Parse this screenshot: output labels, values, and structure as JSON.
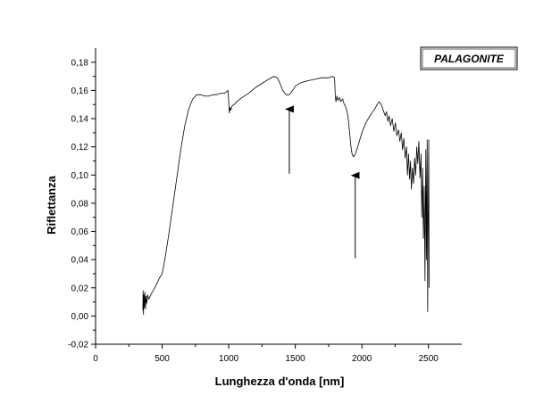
{
  "chart_data": {
    "type": "line",
    "xlabel": "Lunghezza d'onda [nm]",
    "ylabel": "Riflettanza",
    "xlim": [
      0,
      2750
    ],
    "ylim": [
      -0.02,
      0.19
    ],
    "x_ticks": [
      0,
      500,
      1000,
      1500,
      2000,
      2500
    ],
    "x_tick_labels": [
      "0",
      "500",
      "1000",
      "1500",
      "2000",
      "2500"
    ],
    "y_ticks": [
      -0.02,
      0.0,
      0.02,
      0.04,
      0.06,
      0.08,
      0.1,
      0.12,
      0.14,
      0.16,
      0.18
    ],
    "y_tick_labels": [
      "-0,02",
      "0,00",
      "0,02",
      "0,04",
      "0,06",
      "0,08",
      "0,10",
      "0,12",
      "0,14",
      "0,16",
      "0,18"
    ],
    "grid": false,
    "legend": {
      "text": "PALAGONITE",
      "position": "top-right"
    },
    "line_color": "#000000",
    "series": [
      {
        "points": [
          [
            355,
            0.004
          ],
          [
            357,
            0.018
          ],
          [
            360,
            0.001
          ],
          [
            363,
            0.015
          ],
          [
            366,
            0.006
          ],
          [
            370,
            0.017
          ],
          [
            375,
            0.005
          ],
          [
            380,
            0.014
          ],
          [
            385,
            0.009
          ],
          [
            390,
            0.015
          ],
          [
            400,
            0.012
          ],
          [
            420,
            0.016
          ],
          [
            450,
            0.021
          ],
          [
            480,
            0.027
          ],
          [
            500,
            0.03
          ],
          [
            520,
            0.04
          ],
          [
            550,
            0.058
          ],
          [
            580,
            0.078
          ],
          [
            610,
            0.098
          ],
          [
            640,
            0.118
          ],
          [
            670,
            0.135
          ],
          [
            700,
            0.147
          ],
          [
            730,
            0.154
          ],
          [
            760,
            0.157
          ],
          [
            790,
            0.157
          ],
          [
            820,
            0.156
          ],
          [
            850,
            0.156
          ],
          [
            880,
            0.157
          ],
          [
            910,
            0.157
          ],
          [
            940,
            0.158
          ],
          [
            970,
            0.158
          ],
          [
            995,
            0.16
          ],
          [
            1000,
            0.152
          ],
          [
            1004,
            0.144
          ],
          [
            1010,
            0.148
          ],
          [
            1015,
            0.146
          ],
          [
            1025,
            0.149
          ],
          [
            1040,
            0.15
          ],
          [
            1060,
            0.152
          ],
          [
            1100,
            0.155
          ],
          [
            1150,
            0.158
          ],
          [
            1200,
            0.162
          ],
          [
            1250,
            0.165
          ],
          [
            1300,
            0.168
          ],
          [
            1340,
            0.17
          ],
          [
            1365,
            0.169
          ],
          [
            1385,
            0.165
          ],
          [
            1405,
            0.16
          ],
          [
            1430,
            0.157
          ],
          [
            1455,
            0.157
          ],
          [
            1480,
            0.16
          ],
          [
            1500,
            0.163
          ],
          [
            1530,
            0.165
          ],
          [
            1560,
            0.166
          ],
          [
            1600,
            0.167
          ],
          [
            1650,
            0.168
          ],
          [
            1700,
            0.169
          ],
          [
            1750,
            0.169
          ],
          [
            1780,
            0.17
          ],
          [
            1795,
            0.169
          ],
          [
            1800,
            0.156
          ],
          [
            1805,
            0.152
          ],
          [
            1812,
            0.156
          ],
          [
            1820,
            0.153
          ],
          [
            1832,
            0.155
          ],
          [
            1840,
            0.152
          ],
          [
            1855,
            0.154
          ],
          [
            1868,
            0.15
          ],
          [
            1880,
            0.148
          ],
          [
            1895,
            0.142
          ],
          [
            1908,
            0.13
          ],
          [
            1918,
            0.12
          ],
          [
            1928,
            0.114
          ],
          [
            1940,
            0.113
          ],
          [
            1955,
            0.116
          ],
          [
            1975,
            0.122
          ],
          [
            2000,
            0.13
          ],
          [
            2030,
            0.137
          ],
          [
            2060,
            0.142
          ],
          [
            2090,
            0.146
          ],
          [
            2115,
            0.15
          ],
          [
            2130,
            0.152
          ],
          [
            2145,
            0.15
          ],
          [
            2160,
            0.146
          ],
          [
            2175,
            0.142
          ],
          [
            2185,
            0.145
          ],
          [
            2195,
            0.138
          ],
          [
            2205,
            0.142
          ],
          [
            2215,
            0.135
          ],
          [
            2228,
            0.14
          ],
          [
            2240,
            0.131
          ],
          [
            2252,
            0.137
          ],
          [
            2262,
            0.128
          ],
          [
            2275,
            0.132
          ],
          [
            2285,
            0.124
          ],
          [
            2296,
            0.13
          ],
          [
            2305,
            0.118
          ],
          [
            2315,
            0.126
          ],
          [
            2325,
            0.112
          ],
          [
            2335,
            0.12
          ],
          [
            2342,
            0.1
          ],
          [
            2350,
            0.115
          ],
          [
            2358,
            0.097
          ],
          [
            2365,
            0.11
          ],
          [
            2372,
            0.09
          ],
          [
            2380,
            0.105
          ],
          [
            2388,
            0.094
          ],
          [
            2396,
            0.112
          ],
          [
            2404,
            0.1
          ],
          [
            2412,
            0.12
          ],
          [
            2420,
            0.108
          ],
          [
            2428,
            0.124
          ],
          [
            2436,
            0.098
          ],
          [
            2444,
            0.115
          ],
          [
            2450,
            0.07
          ],
          [
            2456,
            0.105
          ],
          [
            2462,
            0.055
          ],
          [
            2468,
            0.092
          ],
          [
            2474,
            0.025
          ],
          [
            2480,
            0.118
          ],
          [
            2485,
            0.04
          ],
          [
            2490,
            0.125
          ],
          [
            2494,
            0.003
          ],
          [
            2498,
            0.07
          ],
          [
            2502,
            0.125
          ],
          [
            2505,
            0.02
          ]
        ]
      }
    ],
    "annotations": [
      {
        "type": "arrow",
        "x": 1455,
        "y_tail": 0.101,
        "y_head": 0.148
      },
      {
        "type": "arrow",
        "x": 1950,
        "y_tail": 0.041,
        "y_head": 0.101
      }
    ]
  }
}
